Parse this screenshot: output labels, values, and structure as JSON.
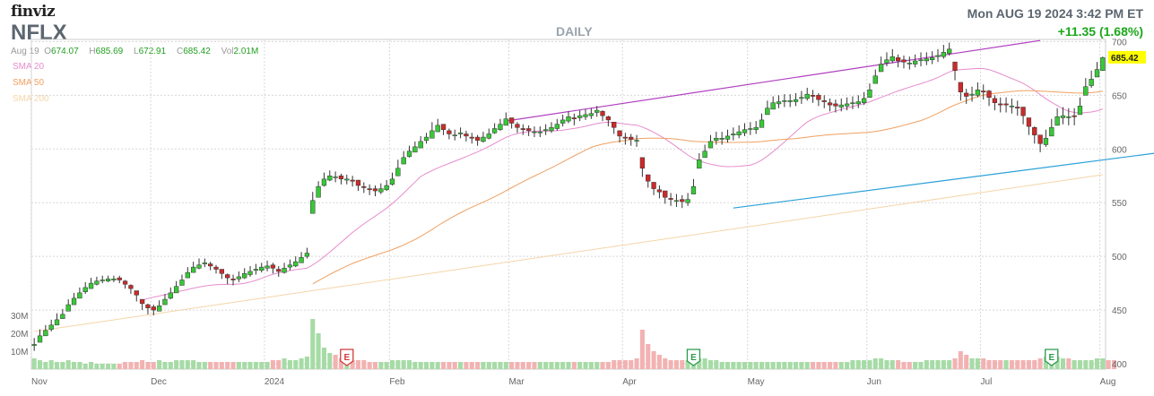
{
  "header": {
    "logo": "finviz",
    "ticker": "NFLX",
    "timeframe": "DAILY",
    "datetime": "Mon AUG 19 2024 3:42 PM ET",
    "change": "+11.35 (1.68%)"
  },
  "ohlc": {
    "date": "Aug 19",
    "open_label": "O",
    "open": "674.07",
    "high_label": "H",
    "high": "685.69",
    "low_label": "L",
    "low": "672.91",
    "close_label": "C",
    "close": "685.42",
    "vol_label": "Vol",
    "vol": "2.01M"
  },
  "legend": [
    {
      "label": "SMA 20",
      "color": "#e68ccd"
    },
    {
      "label": "SMA 50",
      "color": "#f0a060"
    },
    {
      "label": "SMA 200",
      "color": "#f5d5a8"
    }
  ],
  "colors": {
    "up": "#37c837",
    "down": "#cc2a2a",
    "wick": "#333333",
    "vol_up": "#a6dba6",
    "vol_down": "#f3b2b2",
    "upper_trend": "#b040c0",
    "lower_trend": "#2aa0d8",
    "last_price_bg": "#ffff00",
    "earnings_red": "#d03a3a",
    "earnings_green": "#2a9a4a"
  },
  "chart_data": {
    "type": "candlestick",
    "title": "NFLX",
    "subtitle": "DAILY",
    "x_ticks": [
      "Nov",
      "Dec",
      "2024",
      "Feb",
      "Mar",
      "Apr",
      "May",
      "Jun",
      "Jul",
      "Aug"
    ],
    "y_ticks": [
      400,
      450,
      500,
      550,
      600,
      650,
      700
    ],
    "ylim": [
      395,
      702
    ],
    "vol_ticks": [
      "30M",
      "20M",
      "10M"
    ],
    "last_price": "685.42",
    "earnings_markers": [
      {
        "label": "E",
        "index": 55,
        "color": "red"
      },
      {
        "label": "E",
        "index": 116,
        "color": "green"
      },
      {
        "label": "E",
        "index": 179,
        "color": "green"
      }
    ],
    "trendlines": [
      {
        "name": "upper",
        "points": [
          [
            83,
            626
          ],
          [
            177,
            701
          ]
        ]
      },
      {
        "name": "lower",
        "points": [
          [
            123,
            545
          ],
          [
            200,
            598
          ]
        ]
      }
    ],
    "closes": [
      418,
      426,
      431,
      436,
      441,
      446,
      455,
      461,
      466,
      471,
      475,
      477,
      478,
      479,
      479,
      478,
      474,
      470,
      464,
      456,
      452,
      450,
      454,
      460,
      466,
      472,
      478,
      485,
      490,
      492,
      494,
      491,
      488,
      484,
      480,
      478,
      481,
      484,
      486,
      488,
      490,
      491,
      489,
      486,
      489,
      492,
      495,
      499,
      503,
      552,
      565,
      572,
      575,
      574,
      572,
      572,
      570,
      566,
      564,
      562,
      561,
      563,
      566,
      572,
      582,
      592,
      598,
      602,
      607,
      611,
      617,
      622,
      618,
      614,
      613,
      615,
      612,
      610,
      608,
      611,
      614,
      619,
      623,
      628,
      624,
      620,
      618,
      617,
      616,
      616,
      618,
      620,
      623,
      627,
      630,
      628,
      631,
      632,
      633,
      636,
      631,
      627,
      620,
      612,
      610,
      609,
      608,
      582,
      570,
      563,
      560,
      555,
      553,
      552,
      551,
      553,
      565,
      590,
      598,
      607,
      610,
      610,
      612,
      614,
      616,
      618,
      619,
      620,
      627,
      638,
      643,
      644,
      645,
      645,
      646,
      648,
      651,
      649,
      646,
      644,
      641,
      640,
      641,
      642,
      643,
      644,
      647,
      655,
      668,
      679,
      683,
      686,
      682,
      681,
      680,
      682,
      683,
      684,
      685,
      687,
      690,
      693,
      673,
      653,
      649,
      651,
      655,
      653,
      648,
      643,
      641,
      641,
      640,
      638,
      631,
      621,
      613,
      605,
      610,
      620,
      630,
      631,
      630,
      630,
      640,
      658,
      665,
      674,
      685
    ],
    "ranges": [
      [
        412,
        424
      ],
      [
        420,
        432
      ],
      [
        426,
        436
      ],
      [
        430,
        441
      ],
      [
        436,
        447
      ],
      [
        442,
        451
      ],
      [
        449,
        460
      ],
      [
        455,
        466
      ],
      [
        461,
        471
      ],
      [
        465,
        476
      ],
      [
        470,
        480
      ],
      [
        473,
        481
      ],
      [
        475,
        482
      ],
      [
        476,
        482
      ],
      [
        476,
        482
      ],
      [
        475,
        482
      ],
      [
        470,
        478
      ],
      [
        465,
        474
      ],
      [
        458,
        468
      ],
      [
        450,
        460
      ],
      [
        446,
        456
      ],
      [
        445,
        455
      ],
      [
        449,
        459
      ],
      [
        455,
        465
      ],
      [
        460,
        471
      ],
      [
        466,
        477
      ],
      [
        473,
        483
      ],
      [
        480,
        490
      ],
      [
        485,
        495
      ],
      [
        488,
        498
      ],
      [
        490,
        498
      ],
      [
        487,
        495
      ],
      [
        484,
        492
      ],
      [
        479,
        488
      ],
      [
        474,
        484
      ],
      [
        473,
        483
      ],
      [
        476,
        486
      ],
      [
        479,
        489
      ],
      [
        481,
        491
      ],
      [
        483,
        493
      ],
      [
        485,
        494
      ],
      [
        486,
        496
      ],
      [
        484,
        494
      ],
      [
        481,
        491
      ],
      [
        484,
        494
      ],
      [
        487,
        497
      ],
      [
        490,
        500
      ],
      [
        494,
        504
      ],
      [
        498,
        508
      ],
      [
        540,
        560
      ],
      [
        555,
        570
      ],
      [
        565,
        578
      ],
      [
        570,
        580
      ],
      [
        569,
        579
      ],
      [
        567,
        577
      ],
      [
        567,
        576
      ],
      [
        565,
        575
      ],
      [
        561,
        571
      ],
      [
        559,
        569
      ],
      [
        557,
        567
      ],
      [
        556,
        566
      ],
      [
        558,
        568
      ],
      [
        561,
        571
      ],
      [
        566,
        578
      ],
      [
        575,
        590
      ],
      [
        586,
        598
      ],
      [
        592,
        603
      ],
      [
        597,
        607
      ],
      [
        601,
        612
      ],
      [
        605,
        615
      ],
      [
        610,
        625
      ],
      [
        616,
        628
      ],
      [
        613,
        623
      ],
      [
        609,
        619
      ],
      [
        608,
        618
      ],
      [
        610,
        620
      ],
      [
        607,
        617
      ],
      [
        605,
        615
      ],
      [
        603,
        613
      ],
      [
        606,
        616
      ],
      [
        609,
        619
      ],
      [
        614,
        624
      ],
      [
        617,
        628
      ],
      [
        622,
        634
      ],
      [
        619,
        629
      ],
      [
        615,
        625
      ],
      [
        613,
        623
      ],
      [
        612,
        622
      ],
      [
        611,
        621
      ],
      [
        611,
        621
      ],
      [
        613,
        623
      ],
      [
        615,
        625
      ],
      [
        617,
        628
      ],
      [
        621,
        632
      ],
      [
        624,
        635
      ],
      [
        622,
        633
      ],
      [
        626,
        636
      ],
      [
        627,
        637
      ],
      [
        628,
        638
      ],
      [
        630,
        640
      ],
      [
        626,
        636
      ],
      [
        621,
        631
      ],
      [
        614,
        625
      ],
      [
        606,
        617
      ],
      [
        604,
        615
      ],
      [
        603,
        614
      ],
      [
        602,
        613
      ],
      [
        574,
        592
      ],
      [
        564,
        576
      ],
      [
        557,
        569
      ],
      [
        554,
        566
      ],
      [
        549,
        561
      ],
      [
        547,
        559
      ],
      [
        546,
        558
      ],
      [
        545,
        557
      ],
      [
        547,
        559
      ],
      [
        558,
        572
      ],
      [
        582,
        596
      ],
      [
        592,
        604
      ],
      [
        601,
        613
      ],
      [
        604,
        616
      ],
      [
        604,
        616
      ],
      [
        606,
        618
      ],
      [
        608,
        620
      ],
      [
        610,
        622
      ],
      [
        612,
        624
      ],
      [
        613,
        625
      ],
      [
        614,
        626
      ],
      [
        620,
        633
      ],
      [
        632,
        645
      ],
      [
        637,
        649
      ],
      [
        638,
        650
      ],
      [
        639,
        651
      ],
      [
        639,
        651
      ],
      [
        640,
        652
      ],
      [
        642,
        654
      ],
      [
        645,
        657
      ],
      [
        643,
        655
      ],
      [
        640,
        652
      ],
      [
        638,
        650
      ],
      [
        635,
        647
      ],
      [
        634,
        646
      ],
      [
        635,
        647
      ],
      [
        636,
        648
      ],
      [
        637,
        649
      ],
      [
        638,
        650
      ],
      [
        641,
        653
      ],
      [
        648,
        661
      ],
      [
        661,
        674
      ],
      [
        672,
        686
      ],
      [
        677,
        690
      ],
      [
        680,
        693
      ],
      [
        676,
        688
      ],
      [
        675,
        687
      ],
      [
        674,
        686
      ],
      [
        676,
        688
      ],
      [
        677,
        690
      ],
      [
        678,
        690
      ],
      [
        679,
        691
      ],
      [
        681,
        693
      ],
      [
        684,
        697
      ],
      [
        687,
        699
      ],
      [
        664,
        681
      ],
      [
        645,
        662
      ],
      [
        642,
        656
      ],
      [
        644,
        658
      ],
      [
        648,
        662
      ],
      [
        646,
        660
      ],
      [
        640,
        655
      ],
      [
        636,
        650
      ],
      [
        634,
        648
      ],
      [
        634,
        648
      ],
      [
        633,
        647
      ],
      [
        631,
        645
      ],
      [
        623,
        639
      ],
      [
        613,
        629
      ],
      [
        605,
        621
      ],
      [
        597,
        613
      ],
      [
        602,
        618
      ],
      [
        612,
        628
      ],
      [
        622,
        638
      ],
      [
        623,
        639
      ],
      [
        622,
        638
      ],
      [
        622,
        638
      ],
      [
        632,
        648
      ],
      [
        650,
        666
      ],
      [
        657,
        673
      ],
      [
        667,
        681
      ],
      [
        673,
        686
      ]
    ],
    "volumes": [
      6,
      5,
      4,
      5,
      4,
      4,
      5,
      4,
      4,
      3,
      4,
      3,
      3,
      3,
      3,
      3,
      4,
      4,
      4,
      5,
      4,
      4,
      5,
      4,
      4,
      5,
      5,
      5,
      5,
      4,
      4,
      4,
      4,
      4,
      4,
      4,
      4,
      4,
      4,
      4,
      4,
      4,
      5,
      5,
      6,
      5,
      5,
      6,
      7,
      28,
      20,
      12,
      9,
      8,
      6,
      6,
      5,
      5,
      5,
      4,
      4,
      4,
      4,
      5,
      5,
      5,
      5,
      4,
      4,
      4,
      4,
      4,
      4,
      4,
      4,
      4,
      4,
      4,
      4,
      4,
      4,
      4,
      4,
      4,
      4,
      4,
      4,
      4,
      4,
      4,
      4,
      4,
      4,
      4,
      4,
      4,
      4,
      4,
      4,
      4,
      4,
      4,
      5,
      5,
      5,
      5,
      6,
      22,
      14,
      10,
      8,
      6,
      5,
      5,
      5,
      5,
      5,
      6,
      6,
      5,
      5,
      4,
      4,
      4,
      4,
      4,
      4,
      4,
      4,
      4,
      4,
      4,
      4,
      4,
      4,
      4,
      4,
      4,
      4,
      4,
      4,
      4,
      4,
      4,
      5,
      5,
      5,
      5,
      6,
      6,
      5,
      5,
      5,
      4,
      4,
      4,
      4,
      5,
      5,
      5,
      5,
      5,
      6,
      10,
      8,
      6,
      6,
      6,
      5,
      5,
      5,
      5,
      5,
      5,
      5,
      5,
      5,
      6,
      7,
      8,
      7,
      6,
      6,
      5,
      5,
      5,
      5,
      6,
      6,
      5,
      5
    ],
    "sma20": [
      null,
      null,
      null,
      null,
      null,
      null,
      null,
      null,
      null,
      null,
      null,
      null,
      null,
      null,
      null,
      null,
      null,
      null,
      null,
      null,
      null,
      null,
      null,
      null,
      null,
      null,
      null,
      null,
      null,
      null,
      null,
      null,
      null,
      null,
      null,
      null,
      null,
      null,
      null,
      null,
      null,
      null,
      null,
      null,
      null,
      null,
      null,
      null,
      null,
      null,
      null,
      null,
      null,
      null,
      null,
      null,
      null,
      null,
      null,
      null,
      null,
      null,
      null,
      null,
      null,
      null,
      null,
      null,
      null,
      null,
      null,
      null,
      null,
      null,
      null,
      null,
      null,
      null,
      null,
      null,
      null,
      null,
      null,
      null,
      null,
      null,
      null,
      null,
      null,
      null,
      null,
      null,
      null,
      null,
      null,
      null,
      null,
      null,
      null,
      null,
      null,
      null,
      null,
      null,
      null,
      null,
      null,
      null,
      null,
      null,
      null,
      null,
      null,
      null,
      null,
      null,
      null,
      null,
      null,
      null,
      null,
      null,
      null,
      null,
      null,
      null,
      null,
      null,
      null,
      null,
      null,
      null,
      null,
      null,
      null,
      null,
      null,
      null,
      null,
      null,
      null,
      null,
      null,
      null,
      null,
      null,
      null,
      null,
      null,
      null,
      null,
      null,
      null,
      null,
      null,
      null,
      null,
      null,
      null,
      null,
      null,
      null,
      null,
      null,
      null,
      null,
      null,
      null,
      null,
      null,
      null,
      null,
      null,
      null,
      null,
      null,
      null,
      null,
      null,
      null,
      null,
      null,
      null,
      null,
      null,
      null,
      null,
      null,
      null,
      null,
      null,
      null,
      null,
      null,
      null
    ],
    "sma20_note_placeholder": "",
    "sma200_start": 430,
    "sma200_end": 576
  }
}
